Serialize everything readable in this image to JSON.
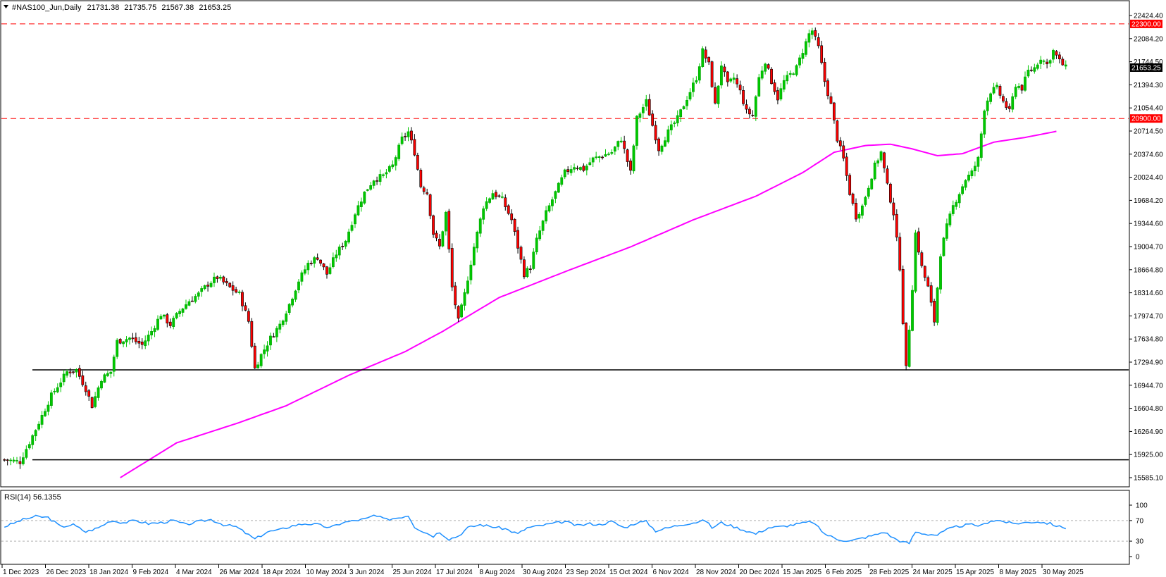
{
  "chart_data": {
    "type": "candlestick",
    "instrument": {
      "symbol": "#NAS100_Jun,Daily",
      "ohlc": [
        "21731.38",
        "21735.75",
        "21567.38",
        "21653.25"
      ]
    },
    "price_axis": {
      "range": [
        15585.1,
        22424.4
      ],
      "ticks": [
        "22424.40",
        "22084.20",
        "21744.50",
        "21394.30",
        "21054.40",
        "20714.50",
        "20374.60",
        "20024.40",
        "19684.20",
        "19344.60",
        "19004.70",
        "18664.80",
        "18314.60",
        "17974.70",
        "17634.80",
        "17294.90",
        "16944.70",
        "16604.80",
        "16264.90",
        "15925.00",
        "15585.10"
      ]
    },
    "time_axis": {
      "labels": [
        "1 Dec 2023",
        "26 Dec 2023",
        "18 Jan 2024",
        "9 Feb 2024",
        "4 Mar 2024",
        "26 Mar 2024",
        "18 Apr 2024",
        "10 May 2024",
        "3 Jun 2024",
        "25 Jun 2024",
        "17 Jul 2024",
        "8 Aug 2024",
        "30 Aug 2024",
        "23 Sep 2024",
        "15 Oct 2024",
        "6 Nov 2024",
        "28 Nov 2024",
        "20 Dec 2024",
        "15 Jan 2025",
        "6 Feb 2025",
        "28 Feb 2025",
        "24 Mar 2025",
        "15 Apr 2025",
        "8 May 2025",
        "30 May 2025"
      ]
    },
    "price_path": [
      [
        0,
        15850
      ],
      [
        5,
        15820
      ],
      [
        10,
        16300
      ],
      [
        15,
        16800
      ],
      [
        20,
        17150
      ],
      [
        23,
        17180
      ],
      [
        26,
        16900
      ],
      [
        28,
        16650
      ],
      [
        31,
        17050
      ],
      [
        34,
        17150
      ],
      [
        36,
        17600
      ],
      [
        40,
        17650
      ],
      [
        44,
        17550
      ],
      [
        47,
        17750
      ],
      [
        50,
        18000
      ],
      [
        53,
        17850
      ],
      [
        56,
        18050
      ],
      [
        59,
        18200
      ],
      [
        62,
        18300
      ],
      [
        65,
        18450
      ],
      [
        68,
        18550
      ],
      [
        72,
        18400
      ],
      [
        75,
        18300
      ],
      [
        78,
        17900
      ],
      [
        80,
        17200
      ],
      [
        82,
        17400
      ],
      [
        85,
        17650
      ],
      [
        88,
        17850
      ],
      [
        91,
        18150
      ],
      [
        94,
        18500
      ],
      [
        97,
        18750
      ],
      [
        100,
        18850
      ],
      [
        103,
        18600
      ],
      [
        106,
        18900
      ],
      [
        109,
        19100
      ],
      [
        112,
        19500
      ],
      [
        115,
        19800
      ],
      [
        118,
        20000
      ],
      [
        121,
        20050
      ],
      [
        124,
        20200
      ],
      [
        127,
        20600
      ],
      [
        129,
        20700
      ],
      [
        131,
        20400
      ],
      [
        133,
        19900
      ],
      [
        135,
        19800
      ],
      [
        137,
        19200
      ],
      [
        139,
        19000
      ],
      [
        141,
        19500
      ],
      [
        143,
        18400
      ],
      [
        145,
        17900
      ],
      [
        147,
        18300
      ],
      [
        150,
        19000
      ],
      [
        153,
        19600
      ],
      [
        156,
        19800
      ],
      [
        159,
        19700
      ],
      [
        162,
        19400
      ],
      [
        164,
        19000
      ],
      [
        166,
        18600
      ],
      [
        168,
        18700
      ],
      [
        170,
        19100
      ],
      [
        173,
        19500
      ],
      [
        176,
        19800
      ],
      [
        179,
        20100
      ],
      [
        182,
        20200
      ],
      [
        185,
        20150
      ],
      [
        188,
        20300
      ],
      [
        191,
        20350
      ],
      [
        194,
        20400
      ],
      [
        197,
        20600
      ],
      [
        200,
        20100
      ],
      [
        202,
        20900
      ],
      [
        205,
        21150
      ],
      [
        207,
        20800
      ],
      [
        209,
        20450
      ],
      [
        212,
        20700
      ],
      [
        215,
        20900
      ],
      [
        218,
        21200
      ],
      [
        221,
        21500
      ],
      [
        223,
        21900
      ],
      [
        225,
        21700
      ],
      [
        227,
        21100
      ],
      [
        229,
        21700
      ],
      [
        231,
        21400
      ],
      [
        233,
        21500
      ],
      [
        235,
        21300
      ],
      [
        237,
        21000
      ],
      [
        239,
        20950
      ],
      [
        241,
        21500
      ],
      [
        243,
        21750
      ],
      [
        245,
        21450
      ],
      [
        247,
        21200
      ],
      [
        249,
        21450
      ],
      [
        251,
        21550
      ],
      [
        253,
        21650
      ],
      [
        255,
        21900
      ],
      [
        257,
        22150
      ],
      [
        258,
        22200
      ],
      [
        260,
        21950
      ],
      [
        262,
        21450
      ],
      [
        264,
        21100
      ],
      [
        266,
        20600
      ],
      [
        268,
        20300
      ],
      [
        270,
        19800
      ],
      [
        272,
        19450
      ],
      [
        274,
        19600
      ],
      [
        276,
        19900
      ],
      [
        278,
        20200
      ],
      [
        280,
        20400
      ],
      [
        282,
        19900
      ],
      [
        284,
        19500
      ],
      [
        286,
        18700
      ],
      [
        287,
        17900
      ],
      [
        288,
        17200
      ],
      [
        290,
        18400
      ],
      [
        291,
        19200
      ],
      [
        293,
        18700
      ],
      [
        295,
        18400
      ],
      [
        297,
        17900
      ],
      [
        299,
        18900
      ],
      [
        301,
        19300
      ],
      [
        303,
        19600
      ],
      [
        305,
        19800
      ],
      [
        307,
        20000
      ],
      [
        309,
        20100
      ],
      [
        311,
        20300
      ],
      [
        313,
        21050
      ],
      [
        315,
        21300
      ],
      [
        317,
        21350
      ],
      [
        319,
        21150
      ],
      [
        321,
        21000
      ],
      [
        323,
        21400
      ],
      [
        325,
        21350
      ],
      [
        327,
        21600
      ],
      [
        329,
        21650
      ],
      [
        331,
        21800
      ],
      [
        333,
        21700
      ],
      [
        335,
        21900
      ],
      [
        337,
        21750
      ],
      [
        339,
        21650
      ]
    ],
    "moving_average": {
      "period": "",
      "color": "#ff00ff",
      "path": [
        [
          37,
          15585
        ],
        [
          55,
          16100
        ],
        [
          75,
          16400
        ],
        [
          90,
          16650
        ],
        [
          110,
          17100
        ],
        [
          128,
          17450
        ],
        [
          140,
          17750
        ],
        [
          158,
          18250
        ],
        [
          180,
          18650
        ],
        [
          200,
          19000
        ],
        [
          220,
          19400
        ],
        [
          240,
          19750
        ],
        [
          255,
          20100
        ],
        [
          265,
          20400
        ],
        [
          275,
          20500
        ],
        [
          283,
          20520
        ],
        [
          290,
          20450
        ],
        [
          298,
          20350
        ],
        [
          306,
          20380
        ],
        [
          316,
          20550
        ],
        [
          326,
          20620
        ],
        [
          336,
          20710
        ]
      ]
    },
    "horizontal_lines": [
      {
        "price": 22300.0,
        "label": "22300.00",
        "style": "dashed",
        "color": "#ff0000"
      },
      {
        "price": 20900.0,
        "label": "20900.00",
        "style": "dashed",
        "color": "#ff0000"
      },
      {
        "price": 17180,
        "style": "solid",
        "color": "#000000"
      },
      {
        "price": 15850,
        "style": "solid",
        "color": "#000000"
      }
    ],
    "current_price": {
      "label": "21653.25",
      "price": 21653.25,
      "color": "#000000"
    },
    "rsi": {
      "title": "RSI(14) 56.1355",
      "ticks": [
        "100",
        "70",
        "30",
        "0"
      ],
      "levels": [
        70,
        30
      ],
      "color": "#1e90ff",
      "path": [
        [
          0,
          58
        ],
        [
          6,
          72
        ],
        [
          10,
          78
        ],
        [
          14,
          76
        ],
        [
          18,
          58
        ],
        [
          22,
          62
        ],
        [
          26,
          48
        ],
        [
          30,
          56
        ],
        [
          34,
          70
        ],
        [
          38,
          66
        ],
        [
          42,
          70
        ],
        [
          46,
          64
        ],
        [
          50,
          66
        ],
        [
          54,
          70
        ],
        [
          58,
          62
        ],
        [
          62,
          68
        ],
        [
          66,
          72
        ],
        [
          70,
          62
        ],
        [
          74,
          58
        ],
        [
          78,
          42
        ],
        [
          80,
          34
        ],
        [
          84,
          48
        ],
        [
          88,
          52
        ],
        [
          92,
          60
        ],
        [
          96,
          64
        ],
        [
          100,
          62
        ],
        [
          104,
          56
        ],
        [
          108,
          66
        ],
        [
          112,
          70
        ],
        [
          116,
          74
        ],
        [
          118,
          80
        ],
        [
          122,
          72
        ],
        [
          126,
          76
        ],
        [
          129,
          80
        ],
        [
          131,
          58
        ],
        [
          134,
          48
        ],
        [
          137,
          40
        ],
        [
          139,
          48
        ],
        [
          142,
          34
        ],
        [
          145,
          40
        ],
        [
          148,
          56
        ],
        [
          152,
          62
        ],
        [
          156,
          58
        ],
        [
          160,
          54
        ],
        [
          164,
          44
        ],
        [
          167,
          56
        ],
        [
          171,
          60
        ],
        [
          175,
          64
        ],
        [
          179,
          68
        ],
        [
          183,
          60
        ],
        [
          187,
          64
        ],
        [
          190,
          62
        ],
        [
          194,
          68
        ],
        [
          198,
          56
        ],
        [
          202,
          66
        ],
        [
          205,
          68
        ],
        [
          208,
          50
        ],
        [
          212,
          56
        ],
        [
          216,
          62
        ],
        [
          220,
          66
        ],
        [
          224,
          70
        ],
        [
          226,
          56
        ],
        [
          229,
          66
        ],
        [
          233,
          58
        ],
        [
          237,
          50
        ],
        [
          240,
          44
        ],
        [
          244,
          56
        ],
        [
          248,
          58
        ],
        [
          252,
          62
        ],
        [
          256,
          66
        ],
        [
          258,
          68
        ],
        [
          262,
          44
        ],
        [
          266,
          34
        ],
        [
          270,
          30
        ],
        [
          274,
          36
        ],
        [
          278,
          42
        ],
        [
          281,
          48
        ],
        [
          284,
          36
        ],
        [
          287,
          28
        ],
        [
          289,
          26
        ],
        [
          291,
          48
        ],
        [
          294,
          44
        ],
        [
          298,
          42
        ],
        [
          301,
          52
        ],
        [
          304,
          58
        ],
        [
          308,
          62
        ],
        [
          312,
          60
        ],
        [
          315,
          70
        ],
        [
          318,
          70
        ],
        [
          322,
          64
        ],
        [
          326,
          66
        ],
        [
          330,
          68
        ],
        [
          334,
          64
        ],
        [
          337,
          58
        ],
        [
          339,
          56
        ]
      ]
    }
  }
}
